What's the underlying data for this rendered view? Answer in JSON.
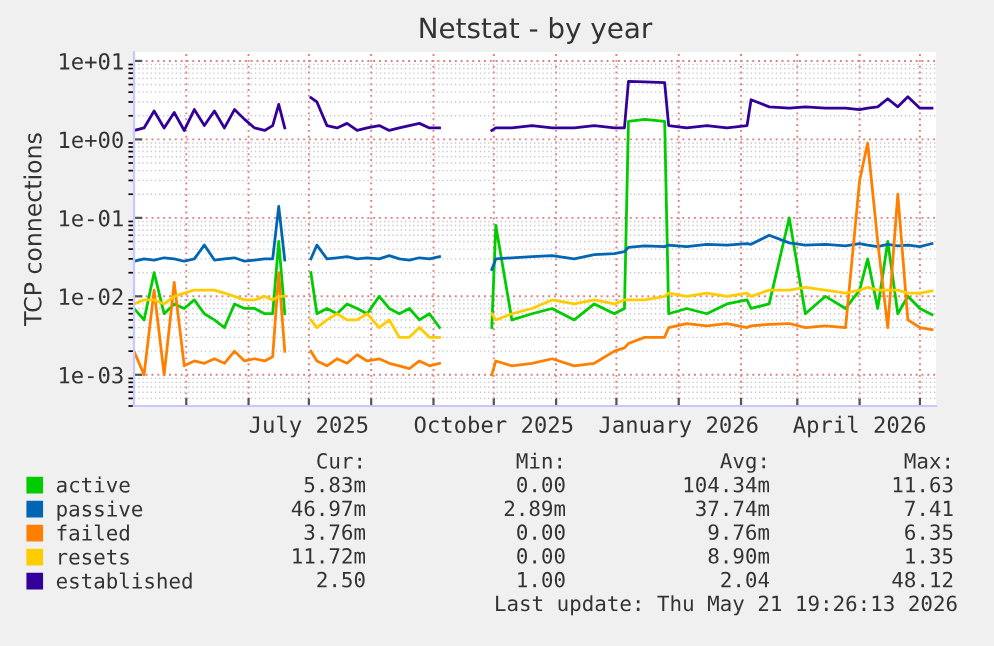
{
  "chart_data": {
    "type": "line",
    "title": "Netstat - by year",
    "ylabel": "TCP connections",
    "x": [
      "2025-04-05",
      "2025-04-10",
      "2025-04-15",
      "2025-04-20",
      "2025-04-25",
      "2025-04-30",
      "2025-05-05",
      "2025-05-10",
      "2025-05-15",
      "2025-05-20",
      "2025-05-25",
      "2025-05-30",
      "2025-06-04",
      "2025-06-09",
      "2025-06-13",
      "2025-06-16",
      "2025-06-19",
      "2025-06-25",
      "2025-07-02",
      "2025-07-05",
      "2025-07-10",
      "2025-07-15",
      "2025-07-20",
      "2025-07-25",
      "2025-07-30",
      "2025-08-05",
      "2025-08-10",
      "2025-08-15",
      "2025-08-20",
      "2025-08-25",
      "2025-08-30",
      "2025-09-04",
      "2025-09-17",
      "2025-09-30",
      "2025-10-02",
      "2025-10-10",
      "2025-10-20",
      "2025-10-30",
      "2025-11-10",
      "2025-11-20",
      "2025-11-30",
      "2025-12-05",
      "2025-12-07",
      "2025-12-15",
      "2025-12-25",
      "2025-12-27",
      "2026-01-05",
      "2026-01-15",
      "2026-01-25",
      "2026-02-04",
      "2026-02-06",
      "2026-02-15",
      "2026-02-25",
      "2026-03-05",
      "2026-03-15",
      "2026-03-25",
      "2026-04-01",
      "2026-04-05",
      "2026-04-10",
      "2026-04-15",
      "2026-04-20",
      "2026-04-25",
      "2026-05-01",
      "2026-05-07"
    ],
    "series": [
      {
        "name": "active",
        "color": "#00cc00",
        "values": [
          0.007,
          0.005,
          0.02,
          0.006,
          0.008,
          0.007,
          0.009,
          0.006,
          0.005,
          0.004,
          0.008,
          0.007,
          0.007,
          0.006,
          0.006,
          0.05,
          0.006,
          null,
          0.02,
          0.006,
          0.007,
          0.006,
          0.008,
          0.007,
          0.006,
          0.01,
          0.007,
          0.006,
          0.007,
          0.005,
          0.006,
          0.004,
          null,
          0.004,
          0.08,
          0.005,
          0.006,
          0.007,
          0.005,
          0.008,
          0.006,
          0.007,
          1.7,
          1.8,
          1.7,
          0.006,
          0.007,
          0.006,
          0.008,
          0.009,
          0.007,
          0.008,
          0.1,
          0.006,
          0.01,
          0.007,
          0.012,
          0.03,
          0.007,
          0.05,
          0.006,
          0.01,
          0.007,
          0.00583
        ]
      },
      {
        "name": "passive",
        "color": "#0066b3",
        "values": [
          0.028,
          0.03,
          0.029,
          0.031,
          0.03,
          0.028,
          0.03,
          0.045,
          0.029,
          0.03,
          0.031,
          0.028,
          0.029,
          0.03,
          0.03,
          0.14,
          0.029,
          null,
          0.03,
          0.045,
          0.03,
          0.031,
          0.032,
          0.03,
          0.031,
          0.03,
          0.033,
          0.03,
          0.029,
          0.031,
          0.03,
          0.032,
          null,
          0.022,
          0.03,
          0.031,
          0.032,
          0.033,
          0.03,
          0.034,
          0.035,
          0.037,
          0.042,
          0.044,
          0.043,
          0.045,
          0.043,
          0.046,
          0.045,
          0.047,
          0.046,
          0.06,
          0.048,
          0.045,
          0.046,
          0.044,
          0.047,
          0.045,
          0.043,
          0.046,
          0.044,
          0.045,
          0.043,
          0.04697
        ]
      },
      {
        "name": "failed",
        "color": "#ff8000",
        "values": [
          0.002,
          0.001,
          0.012,
          0.001,
          0.015,
          0.0013,
          0.0015,
          0.0014,
          0.0016,
          0.0014,
          0.002,
          0.0015,
          0.0016,
          0.0015,
          0.0017,
          0.02,
          0.002,
          null,
          0.002,
          0.0015,
          0.0013,
          0.0016,
          0.0014,
          0.0018,
          0.0015,
          0.0016,
          0.0014,
          0.0013,
          0.0012,
          0.0015,
          0.0013,
          0.0014,
          null,
          0.001,
          0.0015,
          0.0013,
          0.0014,
          0.0016,
          0.0013,
          0.0014,
          0.002,
          0.0022,
          0.0025,
          0.003,
          0.003,
          0.004,
          0.0045,
          0.0042,
          0.0045,
          0.004,
          0.0042,
          0.0044,
          0.0045,
          0.004,
          0.0042,
          0.004,
          0.3,
          0.9,
          0.05,
          0.004,
          0.2,
          0.005,
          0.004,
          0.00376
        ]
      },
      {
        "name": "resets",
        "color": "#ffcc00",
        "values": [
          0.008,
          0.009,
          0.009,
          0.008,
          0.01,
          0.011,
          0.012,
          0.012,
          0.012,
          0.011,
          0.01,
          0.009,
          0.009,
          0.01,
          0.009,
          0.01,
          0.01,
          null,
          0.005,
          0.004,
          0.005,
          0.006,
          0.005,
          0.005,
          0.006,
          0.004,
          0.005,
          0.003,
          0.003,
          0.004,
          0.003,
          0.003,
          null,
          0.006,
          0.005,
          0.006,
          0.007,
          0.009,
          0.008,
          0.009,
          0.008,
          0.009,
          0.009,
          0.009,
          0.01,
          0.011,
          0.01,
          0.011,
          0.01,
          0.011,
          0.01,
          0.012,
          0.012,
          0.013,
          0.012,
          0.011,
          0.012,
          0.013,
          0.012,
          0.012,
          0.012,
          0.011,
          0.011,
          0.01172
        ]
      },
      {
        "name": "established",
        "color": "#330099",
        "values": [
          1.3,
          1.4,
          2.3,
          1.4,
          2.2,
          1.3,
          2.4,
          1.5,
          2.3,
          1.4,
          2.4,
          1.8,
          1.4,
          1.3,
          1.5,
          2.8,
          1.4,
          null,
          3.4,
          3.0,
          1.5,
          1.4,
          1.6,
          1.3,
          1.4,
          1.5,
          1.3,
          1.4,
          1.5,
          1.6,
          1.4,
          1.4,
          null,
          1.3,
          1.4,
          1.4,
          1.5,
          1.4,
          1.4,
          1.5,
          1.4,
          1.4,
          5.5,
          5.4,
          5.3,
          1.5,
          1.4,
          1.5,
          1.4,
          1.5,
          3.2,
          2.6,
          2.5,
          2.6,
          2.5,
          2.5,
          2.4,
          2.5,
          2.6,
          3.3,
          2.6,
          3.5,
          2.5,
          2.5
        ]
      }
    ],
    "log": "y",
    "xlim": [
      "2025-04-05",
      "2026-05-09"
    ],
    "xticks": [
      {
        "value": "2025-05-01",
        "label": null
      },
      {
        "value": "2025-06-01",
        "label": null
      },
      {
        "value": "2025-07-01",
        "label": "July 2025"
      },
      {
        "value": "2025-08-01",
        "label": null
      },
      {
        "value": "2025-09-01",
        "label": null
      },
      {
        "value": "2025-10-01",
        "label": "October 2025"
      },
      {
        "value": "2025-11-01",
        "label": null
      },
      {
        "value": "2025-12-01",
        "label": null
      },
      {
        "value": "2026-01-01",
        "label": "January 2026"
      },
      {
        "value": "2026-02-01",
        "label": null
      },
      {
        "value": "2026-03-01",
        "label": null
      },
      {
        "value": "2026-04-01",
        "label": "April 2026"
      },
      {
        "value": "2026-05-01",
        "label": null
      }
    ],
    "ylim": [
      0.0004,
      13
    ],
    "yticks": [
      {
        "value": 0.001,
        "label": "1e-03"
      },
      {
        "value": 0.01,
        "label": "1e-02"
      },
      {
        "value": 0.1,
        "label": "1e-01"
      },
      {
        "value": 1,
        "label": "1e+00"
      },
      {
        "value": 10,
        "label": "1e+01"
      }
    ],
    "grid": true,
    "legend": "bottom left",
    "marker": "none",
    "line_style": "solid",
    "annotations": [
      "Cur:",
      "Min:",
      "Avg:",
      "Max:",
      "5.83m",
      "0.00",
      "104.34m",
      "11.63",
      "46.97m",
      "2.89m",
      "37.74m",
      "7.41",
      "3.76m",
      "0.00",
      "9.76m",
      "6.35",
      "11.72m",
      "0.00",
      "8.90m",
      "1.35",
      "2.50",
      "1.00",
      "2.04",
      "48.12",
      "Last update: Thu May 21 19:26:13 2026"
    ]
  }
}
